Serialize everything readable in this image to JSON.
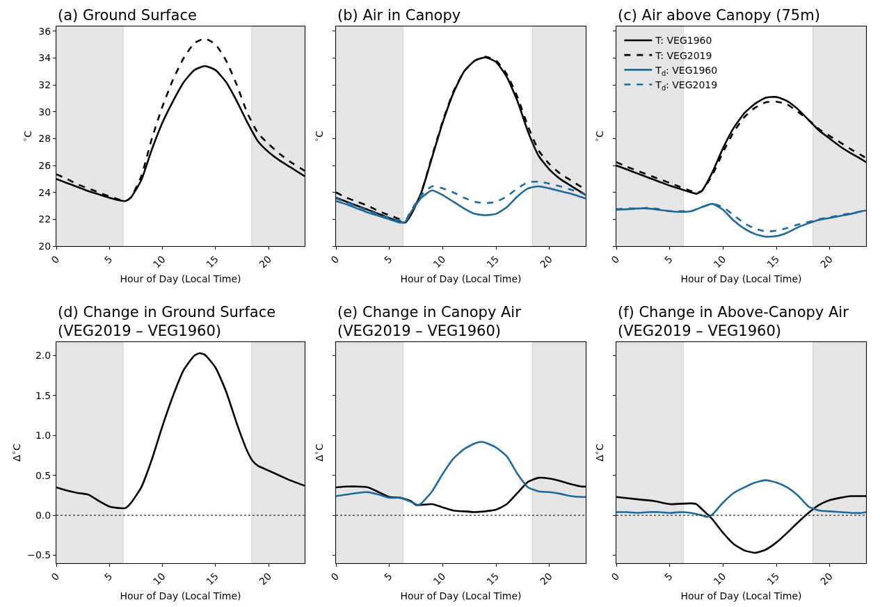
{
  "chart_data": [
    {
      "type": "line",
      "title": "(a) Ground Surface",
      "xlabel": "Hour of Day (Local Time)",
      "ylabel": "$^{∘}$C",
      "xlim": [
        0,
        23.4
      ],
      "xticks": [
        0,
        5,
        10,
        15,
        20
      ],
      "ylim": [
        20,
        36.35
      ],
      "yticks": [
        20,
        22,
        24,
        26,
        28,
        30,
        32,
        34,
        36
      ],
      "bands": [
        {
          "axis": "x",
          "from": 0,
          "to": 6.3,
          "color": "#e5e5e5"
        },
        {
          "axis": "x",
          "from": 18.4,
          "to": 23.4,
          "color": "#e5e5e5"
        }
      ],
      "series": [
        {
          "color": "#000000",
          "line_style": "solid",
          "x": [
            0,
            1,
            2,
            3,
            4,
            5,
            6,
            6.5,
            7,
            8,
            9,
            10,
            11,
            12,
            13,
            14,
            15,
            16,
            17,
            18,
            19,
            20,
            21,
            22,
            23,
            23.4
          ],
          "values": [
            25.0,
            24.7,
            24.4,
            24.1,
            23.85,
            23.6,
            23.4,
            23.35,
            23.6,
            24.9,
            27.2,
            29.2,
            30.8,
            32.2,
            33.1,
            33.4,
            33.1,
            32.2,
            30.8,
            29.2,
            27.8,
            27.0,
            26.4,
            25.9,
            25.4,
            25.2
          ]
        },
        {
          "color": "#000000",
          "line_style": "dashed",
          "x": [
            0,
            1,
            2,
            3,
            4,
            5,
            6,
            6.5,
            7,
            8,
            9,
            10,
            11,
            12,
            13,
            14,
            15,
            16,
            17,
            18,
            19,
            20,
            21,
            22,
            23,
            23.4
          ],
          "values": [
            25.35,
            25.0,
            24.6,
            24.3,
            24.0,
            23.7,
            23.45,
            23.35,
            23.6,
            25.2,
            28.0,
            30.4,
            32.4,
            34.0,
            35.1,
            35.45,
            35.0,
            33.8,
            32.0,
            29.9,
            28.4,
            27.6,
            26.9,
            26.3,
            25.8,
            25.6
          ]
        }
      ]
    },
    {
      "type": "line",
      "title": "(b) Air in Canopy",
      "xlabel": "Hour of Day (Local Time)",
      "ylabel": "$^{∘}$C",
      "tick_labels": "x",
      "xlim": [
        0,
        23.4
      ],
      "xticks": [
        0,
        5,
        10,
        15,
        20
      ],
      "ylim": [
        20,
        36.35
      ],
      "yticks": [
        20,
        22,
        24,
        26,
        28,
        30,
        32,
        34,
        36
      ],
      "bands": [
        {
          "axis": "x",
          "from": 0,
          "to": 6.3,
          "color": "#e5e5e5"
        },
        {
          "axis": "x",
          "from": 18.4,
          "to": 23.4,
          "color": "#e5e5e5"
        }
      ],
      "series": [
        {
          "color": "#000000",
          "line_style": "solid",
          "x": [
            0,
            1,
            2,
            3,
            4,
            5,
            6,
            6.5,
            7,
            8,
            9,
            10,
            11,
            12,
            13,
            14,
            15,
            16,
            17,
            18,
            19,
            20,
            21,
            22,
            23,
            23.4
          ],
          "values": [
            23.6,
            23.3,
            23.0,
            22.7,
            22.4,
            22.1,
            21.8,
            21.75,
            22.3,
            24.0,
            26.6,
            29.2,
            31.4,
            33.0,
            33.8,
            34.05,
            33.7,
            32.6,
            30.8,
            28.5,
            26.7,
            25.7,
            25.0,
            24.5,
            24.0,
            23.8
          ]
        },
        {
          "color": "#000000",
          "line_style": "dashed",
          "x": [
            0,
            1,
            2,
            3,
            4,
            5,
            6,
            6.5,
            7,
            8,
            9,
            10,
            11,
            12,
            13,
            14,
            15,
            16,
            17,
            18,
            19,
            20,
            21,
            22,
            23,
            23.4
          ],
          "values": [
            24.0,
            23.6,
            23.3,
            23.0,
            22.6,
            22.3,
            22.0,
            21.85,
            22.3,
            24.0,
            26.7,
            29.3,
            31.5,
            33.0,
            33.8,
            34.1,
            33.8,
            32.8,
            31.1,
            28.9,
            27.1,
            26.1,
            25.4,
            24.9,
            24.4,
            24.2
          ]
        },
        {
          "color": "#1f6a96",
          "line_style": "solid",
          "x": [
            0,
            1,
            2,
            3,
            4,
            5,
            6,
            6.5,
            7,
            8,
            9,
            10,
            11,
            12,
            13,
            14,
            15,
            16,
            17,
            18,
            19,
            20,
            21,
            22,
            23,
            23.4
          ],
          "values": [
            23.35,
            23.1,
            22.8,
            22.5,
            22.25,
            22.0,
            21.75,
            21.8,
            22.5,
            23.6,
            24.15,
            23.8,
            23.3,
            22.8,
            22.4,
            22.3,
            22.4,
            22.9,
            23.7,
            24.3,
            24.45,
            24.3,
            24.1,
            23.9,
            23.65,
            23.55
          ]
        },
        {
          "color": "#1f6a96",
          "line_style": "dashed",
          "x": [
            0,
            1,
            2,
            3,
            4,
            5,
            6,
            6.5,
            7,
            8,
            9,
            10,
            11,
            12,
            13,
            14,
            15,
            16,
            17,
            18,
            19,
            20,
            21,
            22,
            23,
            23.4
          ],
          "values": [
            23.55,
            23.25,
            22.95,
            22.65,
            22.35,
            22.1,
            21.9,
            21.9,
            22.6,
            23.8,
            24.45,
            24.3,
            24.0,
            23.6,
            23.3,
            23.2,
            23.3,
            23.7,
            24.3,
            24.75,
            24.8,
            24.65,
            24.45,
            24.2,
            23.95,
            23.8
          ]
        }
      ]
    },
    {
      "type": "line",
      "title": "(c) Air above Canopy (75m)",
      "xlabel": "Hour of Day (Local Time)",
      "ylabel": "$^{∘}$C",
      "tick_labels": "x",
      "legend": "top left",
      "xlim": [
        0,
        23.4
      ],
      "xticks": [
        0,
        5,
        10,
        15,
        20
      ],
      "ylim": [
        20,
        36.35
      ],
      "yticks": [
        20,
        22,
        24,
        26,
        28,
        30,
        32,
        34,
        36
      ],
      "bands": [
        {
          "axis": "x",
          "from": 0,
          "to": 6.3,
          "color": "#e5e5e5"
        },
        {
          "axis": "x",
          "from": 18.4,
          "to": 23.4,
          "color": "#e5e5e5"
        }
      ],
      "series": [
        {
          "name": "T: VEG1960",
          "color": "#000000",
          "line_style": "solid",
          "x": [
            0,
            1,
            2,
            3,
            4,
            5,
            6,
            7,
            7.5,
            8,
            9,
            10,
            11,
            12,
            13,
            14,
            15,
            16,
            17,
            18,
            19,
            20,
            21,
            22,
            23,
            23.4
          ],
          "values": [
            26.0,
            25.7,
            25.4,
            25.1,
            24.8,
            24.5,
            24.25,
            24.0,
            23.9,
            24.1,
            25.5,
            27.3,
            28.8,
            29.9,
            30.6,
            31.05,
            31.1,
            30.8,
            30.2,
            29.4,
            28.6,
            28.0,
            27.4,
            26.9,
            26.45,
            26.25
          ]
        },
        {
          "name": "T: VEG2019",
          "color": "#000000",
          "line_style": "dashed",
          "x": [
            0,
            1,
            2,
            3,
            4,
            5,
            6,
            7,
            7.5,
            8,
            9,
            10,
            11,
            12,
            13,
            14,
            15,
            16,
            17,
            18,
            19,
            20,
            21,
            22,
            23,
            23.4
          ],
          "values": [
            26.25,
            25.9,
            25.6,
            25.3,
            25.0,
            24.7,
            24.4,
            24.1,
            24.0,
            24.1,
            25.3,
            27.0,
            28.5,
            29.6,
            30.3,
            30.7,
            30.75,
            30.55,
            30.0,
            29.4,
            28.7,
            28.2,
            27.7,
            27.2,
            26.75,
            26.55
          ]
        },
        {
          "name": "T$_{d}$: VEG1960",
          "color": "#1f6a96",
          "line_style": "solid",
          "x": [
            0,
            1,
            2,
            3,
            4,
            5,
            6,
            7,
            8,
            9,
            10,
            11,
            12,
            13,
            14,
            15,
            16,
            17,
            18,
            19,
            20,
            21,
            22,
            23,
            23.4
          ],
          "values": [
            22.7,
            22.75,
            22.8,
            22.8,
            22.7,
            22.6,
            22.55,
            22.6,
            22.9,
            23.15,
            22.7,
            21.9,
            21.3,
            20.9,
            20.7,
            20.75,
            21.0,
            21.4,
            21.7,
            21.95,
            22.1,
            22.25,
            22.4,
            22.6,
            22.65
          ]
        },
        {
          "name": "T$_{d}$: VEG2019",
          "color": "#1f6a96",
          "line_style": "dashed",
          "x": [
            0,
            1,
            2,
            3,
            4,
            5,
            6,
            7,
            8,
            9,
            10,
            11,
            12,
            13,
            14,
            15,
            16,
            17,
            18,
            19,
            20,
            21,
            22,
            23,
            23.4
          ],
          "values": [
            22.75,
            22.8,
            22.8,
            22.85,
            22.75,
            22.6,
            22.6,
            22.6,
            22.9,
            23.15,
            22.9,
            22.3,
            21.7,
            21.3,
            21.1,
            21.15,
            21.35,
            21.6,
            21.8,
            22.0,
            22.15,
            22.3,
            22.45,
            22.6,
            22.65
          ]
        }
      ]
    },
    {
      "type": "line",
      "title": "(d) Change in Ground Surface\n(VEG2019 – VEG1960)",
      "xlabel": "Hour of Day (Local Time)",
      "ylabel": "Δ$^{∘}$C",
      "xlim": [
        0,
        23.4
      ],
      "xticks": [
        0,
        5,
        10,
        15,
        20
      ],
      "ylim": [
        -0.6,
        2.17
      ],
      "yticks": [
        {
          "value": -0.5,
          "label": "−0.5"
        },
        {
          "value": 0,
          "label": "0.0"
        },
        {
          "value": 0.5,
          "label": "0.5"
        },
        {
          "value": 1,
          "label": "1.0"
        },
        {
          "value": 1.5,
          "label": "1.5"
        },
        {
          "value": 2,
          "label": "2.0"
        }
      ],
      "bands": [
        {
          "axis": "x",
          "from": 0,
          "to": 6.3,
          "color": "#e5e5e5"
        },
        {
          "axis": "x",
          "from": 18.4,
          "to": 23.4,
          "color": "#e5e5e5"
        }
      ],
      "ref_lines": [
        {
          "axis": "y",
          "value": 0,
          "color": "#000000",
          "line_style": "dotted"
        }
      ],
      "series": [
        {
          "color": "#000000",
          "line_style": "solid",
          "x": [
            0,
            1,
            2,
            3,
            4,
            5,
            6,
            6.5,
            7,
            8,
            9,
            10,
            11,
            12,
            13,
            13.5,
            14,
            15,
            16,
            17,
            18,
            18.5,
            19,
            20,
            21,
            22,
            23,
            23.4
          ],
          "values": [
            0.35,
            0.31,
            0.28,
            0.26,
            0.18,
            0.11,
            0.09,
            0.09,
            0.15,
            0.35,
            0.7,
            1.12,
            1.5,
            1.82,
            2.0,
            2.03,
            2.01,
            1.85,
            1.55,
            1.15,
            0.8,
            0.68,
            0.62,
            0.56,
            0.5,
            0.44,
            0.39,
            0.37
          ]
        }
      ]
    },
    {
      "type": "line",
      "title": "(e) Change in Canopy Air\n(VEG2019 – VEG1960)",
      "xlabel": "Hour of Day (Local Time)",
      "ylabel": "Δ$^{∘}$C",
      "tick_labels": "x",
      "xlim": [
        0,
        23.4
      ],
      "xticks": [
        0,
        5,
        10,
        15,
        20
      ],
      "ylim": [
        -0.6,
        2.17
      ],
      "yticks": [
        -0.5,
        0,
        0.5,
        1,
        1.5,
        2
      ],
      "bands": [
        {
          "axis": "x",
          "from": 0,
          "to": 6.3,
          "color": "#e5e5e5"
        },
        {
          "axis": "x",
          "from": 18.4,
          "to": 23.4,
          "color": "#e5e5e5"
        }
      ],
      "ref_lines": [
        {
          "axis": "y",
          "value": 0,
          "color": "#000000",
          "line_style": "dotted"
        }
      ],
      "series": [
        {
          "color": "#000000",
          "line_style": "solid",
          "x": [
            0,
            1,
            2,
            3,
            4,
            5,
            6,
            7,
            7.5,
            8,
            9,
            10,
            11,
            12,
            13,
            14,
            15,
            16,
            17,
            18,
            19,
            20,
            21,
            22,
            23,
            23.4
          ],
          "values": [
            0.35,
            0.36,
            0.36,
            0.35,
            0.29,
            0.23,
            0.22,
            0.18,
            0.13,
            0.13,
            0.14,
            0.1,
            0.06,
            0.05,
            0.04,
            0.05,
            0.07,
            0.14,
            0.28,
            0.42,
            0.47,
            0.46,
            0.43,
            0.39,
            0.36,
            0.36
          ]
        },
        {
          "color": "#1f6a96",
          "line_style": "solid",
          "x": [
            0,
            1,
            2,
            3,
            4,
            5,
            6,
            7,
            7.7,
            8,
            9,
            10,
            11,
            12,
            13,
            13.5,
            14,
            15,
            16,
            17,
            18,
            19,
            20,
            21,
            22,
            23,
            23.4
          ],
          "values": [
            0.24,
            0.26,
            0.28,
            0.29,
            0.26,
            0.22,
            0.22,
            0.17,
            0.13,
            0.15,
            0.3,
            0.52,
            0.71,
            0.83,
            0.9,
            0.92,
            0.91,
            0.85,
            0.74,
            0.52,
            0.35,
            0.3,
            0.29,
            0.27,
            0.24,
            0.23,
            0.23
          ]
        }
      ]
    },
    {
      "type": "line",
      "title": "(f) Change in Above-Canopy Air\n(VEG2019 – VEG1960)",
      "xlabel": "Hour of Day (Local Time)",
      "ylabel": "Δ$^{∘}$C",
      "tick_labels": "x",
      "xlim": [
        0,
        23.4
      ],
      "xticks": [
        0,
        5,
        10,
        15,
        20
      ],
      "ylim": [
        -0.6,
        2.17
      ],
      "yticks": [
        -0.5,
        0,
        0.5,
        1,
        1.5,
        2
      ],
      "bands": [
        {
          "axis": "x",
          "from": 0,
          "to": 6.3,
          "color": "#e5e5e5"
        },
        {
          "axis": "x",
          "from": 18.4,
          "to": 23.4,
          "color": "#e5e5e5"
        }
      ],
      "ref_lines": [
        {
          "axis": "y",
          "value": 0,
          "color": "#000000",
          "line_style": "dotted"
        }
      ],
      "series": [
        {
          "color": "#000000",
          "line_style": "solid",
          "x": [
            0,
            2,
            3.5,
            5,
            7,
            7.5,
            8,
            9,
            10,
            11,
            12,
            13,
            14,
            15,
            16,
            17,
            18,
            19,
            20,
            21,
            22,
            23,
            23.4
          ],
          "values": [
            0.23,
            0.2,
            0.18,
            0.14,
            0.15,
            0.14,
            0.08,
            -0.05,
            -0.22,
            -0.36,
            -0.44,
            -0.47,
            -0.43,
            -0.34,
            -0.22,
            -0.09,
            0.03,
            0.13,
            0.19,
            0.22,
            0.24,
            0.24,
            0.24
          ]
        },
        {
          "color": "#1f6a96",
          "line_style": "solid",
          "x": [
            0,
            1,
            2,
            3,
            4,
            5,
            6,
            7,
            8,
            8.5,
            9,
            10,
            11,
            12,
            13,
            14,
            15,
            16,
            17,
            18,
            19,
            20,
            21,
            22,
            23,
            23.4
          ],
          "values": [
            0.04,
            0.04,
            0.03,
            0.04,
            0.04,
            0.03,
            0.04,
            0.03,
            0.0,
            -0.02,
            0.01,
            0.16,
            0.28,
            0.35,
            0.41,
            0.44,
            0.41,
            0.35,
            0.25,
            0.11,
            0.06,
            0.05,
            0.04,
            0.03,
            0.03,
            0.04
          ]
        }
      ]
    }
  ]
}
